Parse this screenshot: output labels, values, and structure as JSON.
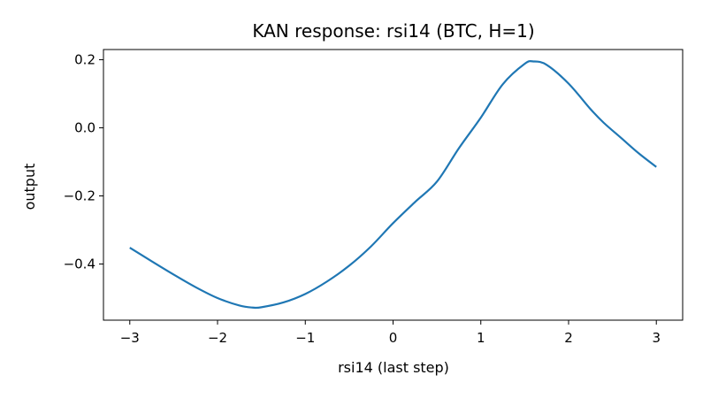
{
  "chart_data": {
    "type": "line",
    "title": "KAN response: rsi14 (BTC, H=1)",
    "xlabel": "rsi14 (last step)",
    "ylabel": "output",
    "xlim": [
      -3.3,
      3.3
    ],
    "ylim": [
      -0.565,
      0.23
    ],
    "xticks": [
      -3,
      -2,
      -1,
      0,
      1,
      2,
      3
    ],
    "xtick_labels": [
      "−3",
      "−2",
      "−1",
      "0",
      "1",
      "2",
      "3"
    ],
    "yticks": [
      -0.4,
      -0.2,
      0.0,
      0.2
    ],
    "ytick_labels": [
      "−0.4",
      "−0.2",
      "0.0",
      "0.2"
    ],
    "grid": false,
    "series": [
      {
        "color": "#1f77b4",
        "x": [
          -3.0,
          -2.75,
          -2.5,
          -2.25,
          -2.0,
          -1.75,
          -1.6,
          -1.5,
          -1.25,
          -1.0,
          -0.75,
          -0.5,
          -0.25,
          0.0,
          0.25,
          0.5,
          0.75,
          1.0,
          1.25,
          1.5,
          1.6,
          1.75,
          2.0,
          2.25,
          2.4,
          2.6,
          2.8,
          3.0
        ],
        "y": [
          -0.352,
          -0.392,
          -0.431,
          -0.468,
          -0.5,
          -0.522,
          -0.528,
          -0.527,
          -0.513,
          -0.488,
          -0.451,
          -0.405,
          -0.348,
          -0.28,
          -0.218,
          -0.158,
          -0.06,
          0.03,
          0.128,
          0.188,
          0.195,
          0.185,
          0.13,
          0.055,
          0.015,
          -0.03,
          -0.075,
          -0.115
        ]
      }
    ]
  }
}
